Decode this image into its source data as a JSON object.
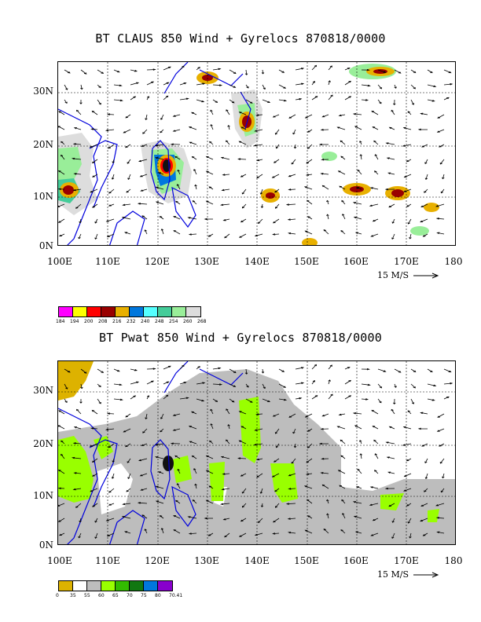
{
  "panels": [
    {
      "title": "BT CLAUS 850 Wind + Gyrelocs 870818/0000",
      "field": "CLAUS brightness temperature",
      "y_labels": [
        "30N",
        "20N",
        "10N",
        "0N"
      ],
      "x_labels": [
        "100E",
        "110E",
        "120E",
        "130E",
        "140E",
        "150E",
        "160E",
        "170E",
        "180"
      ],
      "scale_label": "15 M/S",
      "legend": {
        "colors": [
          "#ff00ff",
          "#ffff00",
          "#ff0000",
          "#990000",
          "#e8b000",
          "#0077dd",
          "#55ffff",
          "#44cc99",
          "#99ee99",
          "#dddddd"
        ],
        "labels": [
          "184",
          "194",
          "200",
          "208",
          "216",
          "232",
          "240",
          "248",
          "254",
          "260",
          "268"
        ]
      }
    },
    {
      "title": "BT Pwat 850 Wind + Gyrelocs 870818/0000",
      "field": "Precipitable water",
      "y_labels": [
        "30N",
        "20N",
        "10N",
        "0N"
      ],
      "x_labels": [
        "100E",
        "110E",
        "120E",
        "130E",
        "140E",
        "150E",
        "160E",
        "170E",
        "180"
      ],
      "scale_label": "15 M/S",
      "legend": {
        "colors": [
          "#ddb200",
          "#ffffff",
          "#bdbdbd",
          "#99ff00",
          "#33bb00",
          "#117711",
          "#0077dd",
          "#8800cc"
        ],
        "labels": [
          "0",
          "35",
          "55",
          "60",
          "65",
          "70",
          "75",
          "80",
          "70.41"
        ]
      }
    }
  ],
  "map_extent": {
    "lon": [
      100,
      180
    ],
    "lat": [
      0,
      36
    ]
  },
  "colors": {
    "coast": "#0000dd",
    "wind": "#000000",
    "grid": "#000000"
  }
}
